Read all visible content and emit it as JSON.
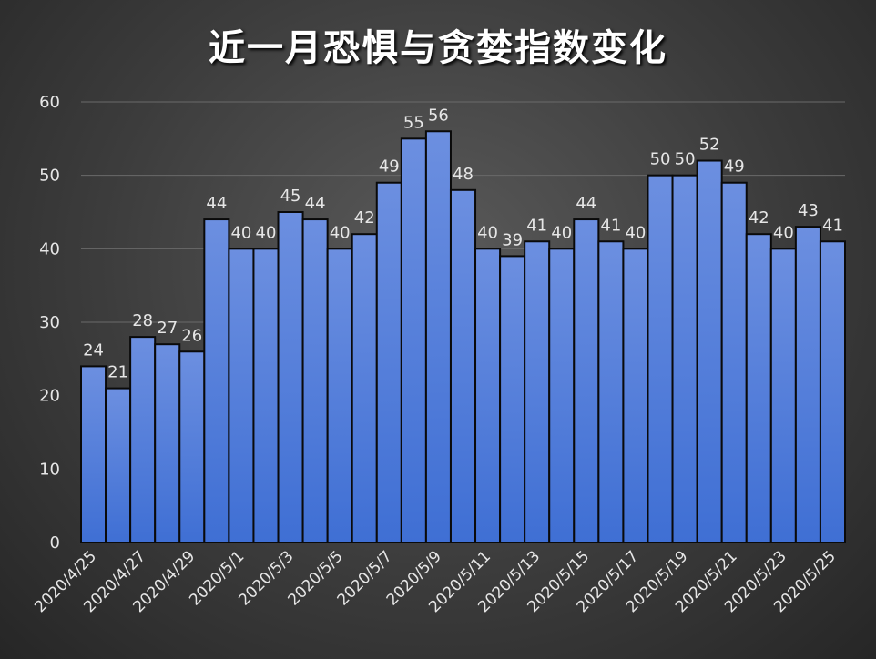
{
  "chart_data": {
    "type": "bar",
    "title": "近一月恐惧与贪婪指数变化",
    "xlabel": "",
    "ylabel": "",
    "ylim": [
      0,
      60
    ],
    "yticks": [
      0,
      10,
      20,
      30,
      40,
      50,
      60
    ],
    "grid": true,
    "legend": "none",
    "bar_color": "#3f6fd4",
    "categories": [
      "2020/4/25",
      "2020/4/26",
      "2020/4/27",
      "2020/4/28",
      "2020/4/29",
      "2020/4/30",
      "2020/5/1",
      "2020/5/2",
      "2020/5/3",
      "2020/5/4",
      "2020/5/5",
      "2020/5/6",
      "2020/5/7",
      "2020/5/8",
      "2020/5/9",
      "2020/5/10",
      "2020/5/11",
      "2020/5/12",
      "2020/5/13",
      "2020/5/14",
      "2020/5/15",
      "2020/5/16",
      "2020/5/17",
      "2020/5/18",
      "2020/5/19",
      "2020/5/20",
      "2020/5/21",
      "2020/5/22",
      "2020/5/23",
      "2020/5/24",
      "2020/5/25"
    ],
    "shown_tick_labels": [
      "2020/4/25",
      "2020/4/27",
      "2020/4/29",
      "2020/5/1",
      "2020/5/3",
      "2020/5/5",
      "2020/5/7",
      "2020/5/9",
      "2020/5/11",
      "2020/5/13",
      "2020/5/15",
      "2020/5/17",
      "2020/5/19",
      "2020/5/21",
      "2020/5/23",
      "2020/5/25"
    ],
    "values": [
      24,
      21,
      28,
      27,
      26,
      44,
      40,
      40,
      45,
      44,
      40,
      42,
      49,
      55,
      56,
      48,
      40,
      39,
      41,
      40,
      44,
      41,
      40,
      50,
      50,
      52,
      49,
      42,
      40,
      43,
      41
    ]
  }
}
